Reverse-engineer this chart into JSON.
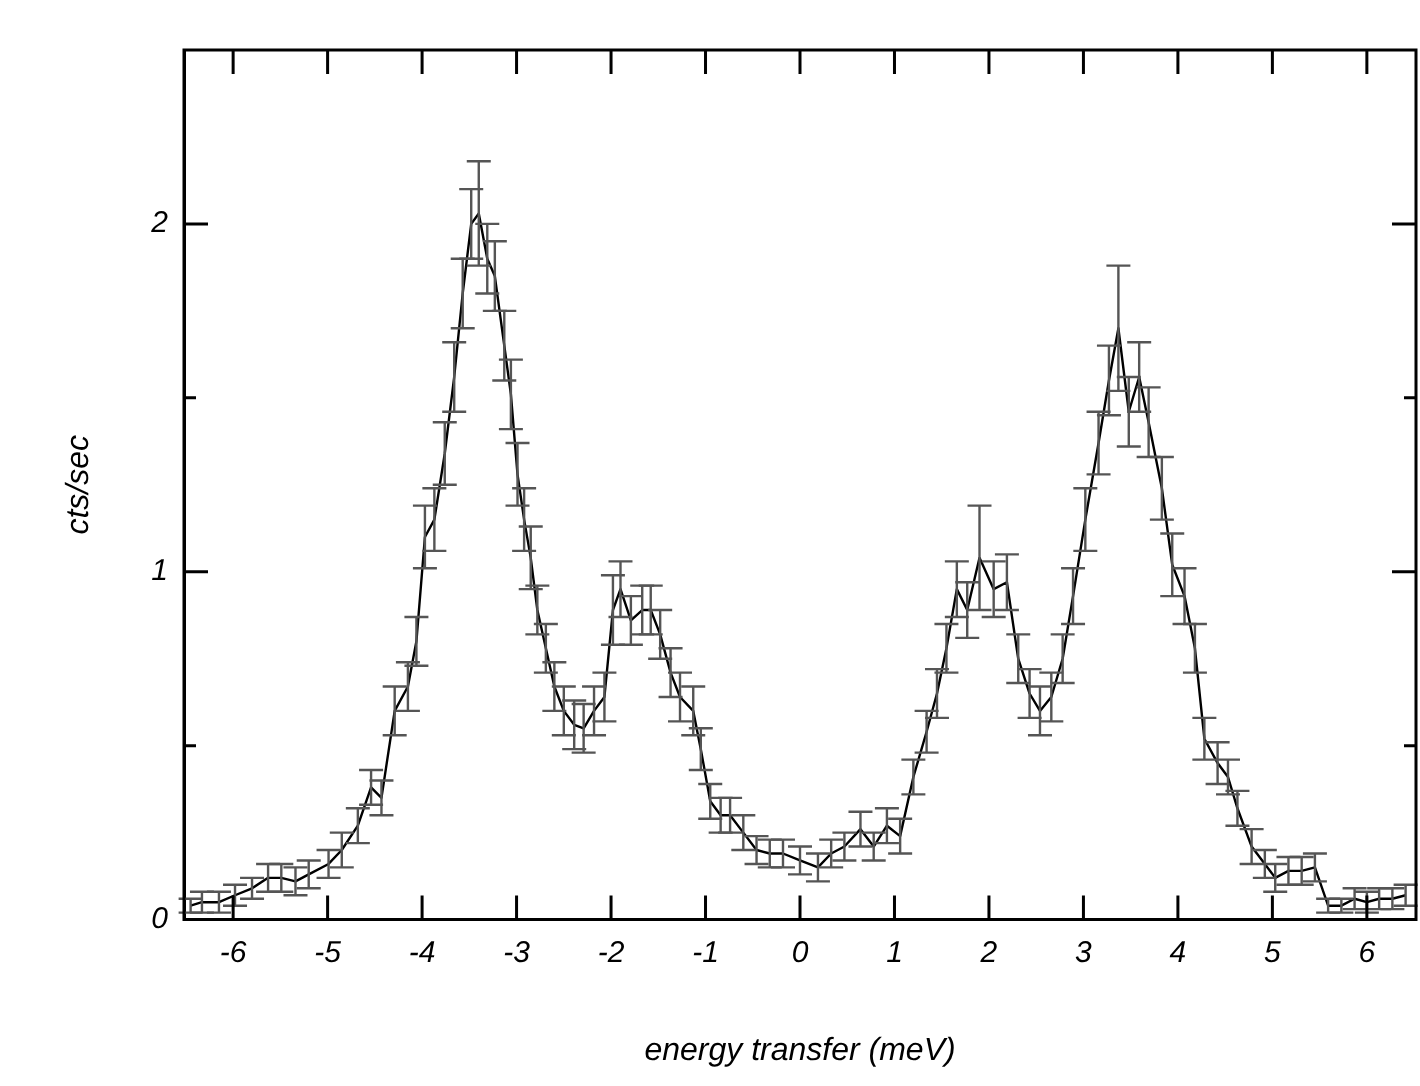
{
  "chart_data": {
    "type": "line",
    "xlabel": "energy transfer (meV)",
    "ylabel": "cts/sec",
    "xlim": [
      -6.52,
      6.52
    ],
    "ylim": [
      0,
      2.5
    ],
    "xticks": [
      -6,
      -5,
      -4,
      -3,
      -2,
      -1,
      0,
      1,
      2,
      3,
      4,
      5,
      6
    ],
    "yticks": [
      0,
      {
        "value": 0.5,
        "label": null
      },
      1,
      {
        "value": 1.5,
        "label": null
      },
      2
    ],
    "grid": false,
    "legend": false,
    "marker": "none",
    "line_style": "solid",
    "series": [
      {
        "color": "#000000",
        "x": [
          -6.45,
          -6.33,
          -6.15,
          -5.98,
          -5.8,
          -5.63,
          -5.49,
          -5.34,
          -5.2,
          -4.99,
          -4.85,
          -4.68,
          -4.54,
          -4.43,
          -4.29,
          -4.15,
          -4.06,
          -3.97,
          -3.87,
          -3.76,
          -3.66,
          -3.57,
          -3.48,
          -3.4,
          -3.31,
          -3.23,
          -3.13,
          -3.06,
          -2.99,
          -2.92,
          -2.85,
          -2.78,
          -2.69,
          -2.6,
          -2.5,
          -2.39,
          -2.29,
          -2.18,
          -2.07,
          -1.98,
          -1.9,
          -1.79,
          -1.67,
          -1.58,
          -1.48,
          -1.37,
          -1.27,
          -1.13,
          -1.05,
          -0.95,
          -0.84,
          -0.74,
          -0.6,
          -0.46,
          -0.32,
          -0.18,
          0.0,
          0.19,
          0.33,
          0.47,
          0.64,
          0.78,
          0.92,
          1.06,
          1.2,
          1.34,
          1.45,
          1.55,
          1.66,
          1.77,
          1.9,
          2.05,
          2.19,
          2.31,
          2.43,
          2.54,
          2.66,
          2.78,
          2.89,
          3.02,
          3.16,
          3.27,
          3.37,
          3.48,
          3.59,
          3.69,
          3.83,
          3.94,
          4.07,
          4.18,
          4.28,
          4.42,
          4.53,
          4.63,
          4.78,
          4.92,
          5.03,
          5.17,
          5.31,
          5.45,
          5.59,
          5.73,
          5.87,
          6.0,
          6.13,
          6.27,
          6.41
        ],
        "values": [
          0.04,
          0.05,
          0.05,
          0.07,
          0.09,
          0.12,
          0.12,
          0.11,
          0.13,
          0.16,
          0.2,
          0.27,
          0.38,
          0.35,
          0.6,
          0.67,
          0.8,
          1.1,
          1.15,
          1.34,
          1.56,
          1.8,
          2.0,
          2.03,
          1.9,
          1.85,
          1.65,
          1.51,
          1.28,
          1.15,
          1.04,
          0.89,
          0.78,
          0.67,
          0.6,
          0.56,
          0.55,
          0.6,
          0.64,
          0.89,
          0.95,
          0.86,
          0.89,
          0.89,
          0.82,
          0.71,
          0.64,
          0.6,
          0.49,
          0.34,
          0.3,
          0.3,
          0.25,
          0.2,
          0.19,
          0.19,
          0.17,
          0.15,
          0.19,
          0.21,
          0.26,
          0.21,
          0.27,
          0.24,
          0.41,
          0.54,
          0.65,
          0.78,
          0.95,
          0.89,
          1.04,
          0.95,
          0.97,
          0.75,
          0.65,
          0.6,
          0.64,
          0.75,
          0.93,
          1.15,
          1.37,
          1.55,
          1.7,
          1.46,
          1.56,
          1.43,
          1.24,
          1.02,
          0.93,
          0.78,
          0.52,
          0.45,
          0.41,
          0.32,
          0.21,
          0.16,
          0.12,
          0.14,
          0.14,
          0.15,
          0.04,
          0.04,
          0.06,
          0.05,
          0.06,
          0.06,
          0.07
        ],
        "errors": [
          0.02,
          0.03,
          0.03,
          0.03,
          0.03,
          0.04,
          0.04,
          0.04,
          0.04,
          0.04,
          0.05,
          0.05,
          0.05,
          0.05,
          0.07,
          0.07,
          0.07,
          0.09,
          0.09,
          0.09,
          0.1,
          0.1,
          0.1,
          0.15,
          0.1,
          0.1,
          0.1,
          0.1,
          0.09,
          0.09,
          0.09,
          0.07,
          0.07,
          0.07,
          0.07,
          0.07,
          0.07,
          0.07,
          0.07,
          0.1,
          0.08,
          0.07,
          0.07,
          0.07,
          0.07,
          0.07,
          0.07,
          0.07,
          0.06,
          0.05,
          0.05,
          0.05,
          0.05,
          0.04,
          0.04,
          0.04,
          0.04,
          0.04,
          0.04,
          0.04,
          0.05,
          0.04,
          0.05,
          0.05,
          0.05,
          0.06,
          0.07,
          0.07,
          0.08,
          0.08,
          0.15,
          0.08,
          0.08,
          0.07,
          0.07,
          0.07,
          0.07,
          0.07,
          0.08,
          0.09,
          0.09,
          0.1,
          0.18,
          0.1,
          0.1,
          0.1,
          0.09,
          0.09,
          0.08,
          0.07,
          0.06,
          0.06,
          0.05,
          0.05,
          0.05,
          0.04,
          0.04,
          0.04,
          0.04,
          0.04,
          0.02,
          0.02,
          0.03,
          0.03,
          0.03,
          0.03,
          0.03
        ]
      }
    ]
  }
}
